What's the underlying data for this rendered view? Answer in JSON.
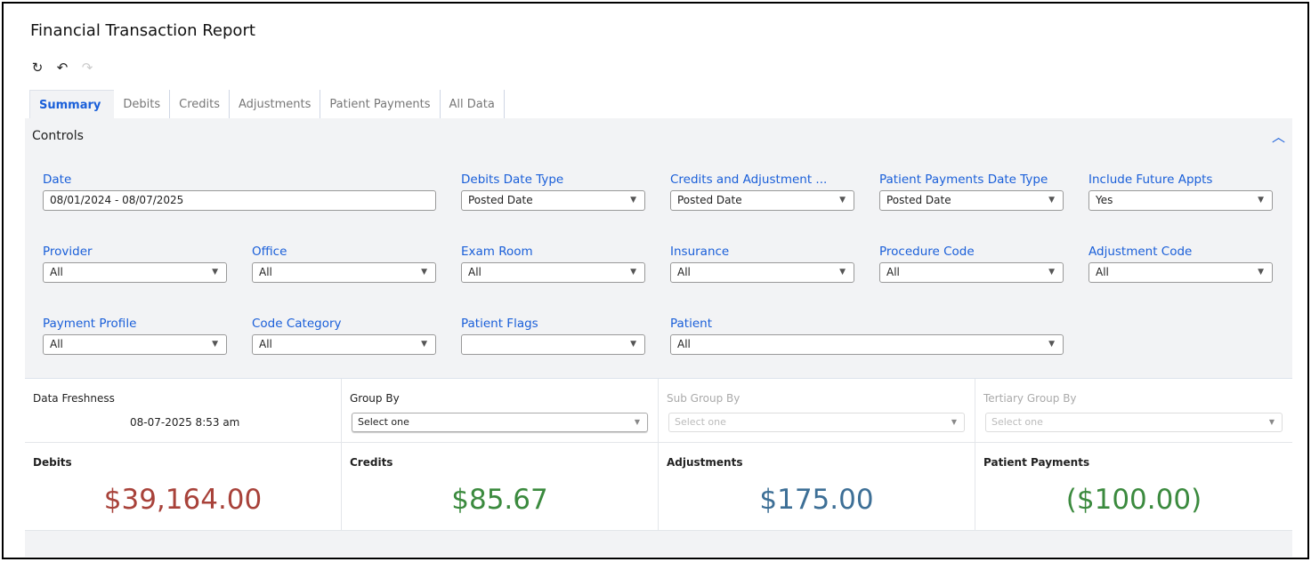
{
  "title": "Financial Transaction Report",
  "toolbar": {
    "refresh_icon": "refresh-icon",
    "undo_icon": "undo-icon",
    "redo_icon": "redo-icon"
  },
  "tabs": [
    {
      "label": "Summary",
      "active": true
    },
    {
      "label": "Debits"
    },
    {
      "label": "Credits"
    },
    {
      "label": "Adjustments"
    },
    {
      "label": "Patient Payments"
    },
    {
      "label": "All Data"
    }
  ],
  "controls": {
    "title": "Controls",
    "fields": [
      {
        "label": "Date",
        "value": "08/01/2024 - 08/07/2025"
      },
      {
        "label": "Debits Date Type",
        "value": "Posted Date"
      },
      {
        "label": "Credits and Adjustment ...",
        "value": "Posted Date"
      },
      {
        "label": "Patient Payments Date Type",
        "value": "Posted Date"
      },
      {
        "label": "Include Future Appts",
        "value": "Yes"
      },
      {
        "label": "Provider",
        "value": "All"
      },
      {
        "label": "Office",
        "value": "All"
      },
      {
        "label": "Exam Room",
        "value": "All"
      },
      {
        "label": "Insurance",
        "value": "All"
      },
      {
        "label": "Procedure Code",
        "value": "All"
      },
      {
        "label": "Adjustment Code",
        "value": "All"
      },
      {
        "label": "Payment Profile",
        "value": "All"
      },
      {
        "label": "Code Category",
        "value": "All"
      },
      {
        "label": "Patient Flags",
        "value": ""
      },
      {
        "label": "Patient",
        "value": "All"
      }
    ]
  },
  "freshness": {
    "label": "Data Freshness",
    "value": "08-07-2025 8:53 am"
  },
  "grouping": [
    {
      "label": "Group By",
      "placeholder": "Select one"
    },
    {
      "label": "Sub Group By",
      "placeholder": "Select one"
    },
    {
      "label": "Tertiary Group By",
      "placeholder": "Select one"
    }
  ],
  "kpis": [
    {
      "label": "Debits",
      "value": "$39,164.00",
      "color": "#a8423a"
    },
    {
      "label": "Credits",
      "value": "$85.67",
      "color": "#3b8a3e"
    },
    {
      "label": "Adjustments",
      "value": "$175.00",
      "color": "#3d6f96"
    },
    {
      "label": "Patient Payments",
      "value": "($100.00)",
      "color": "#3b8a3e"
    }
  ]
}
